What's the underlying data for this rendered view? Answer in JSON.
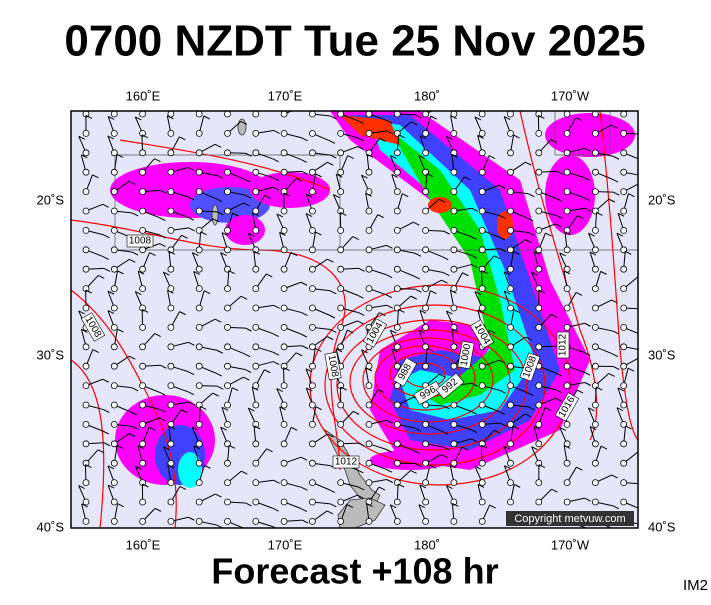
{
  "title": "0700 NZDT Tue 25 Nov 2025",
  "footer": "Forecast +108 hr",
  "model": "IM2",
  "copyright": "Copyright metvuw.com",
  "lon_labels": [
    "160˚E",
    "170˚E",
    "180˚",
    "170˚W"
  ],
  "lat_labels": [
    "20˚S",
    "30˚S",
    "40˚S"
  ],
  "isobar_labels": [
    "1008",
    "1008",
    "1004",
    "1008",
    "988",
    "996",
    "992",
    "1000",
    "1004",
    "1008",
    "1012",
    "1016",
    "1012"
  ]
}
